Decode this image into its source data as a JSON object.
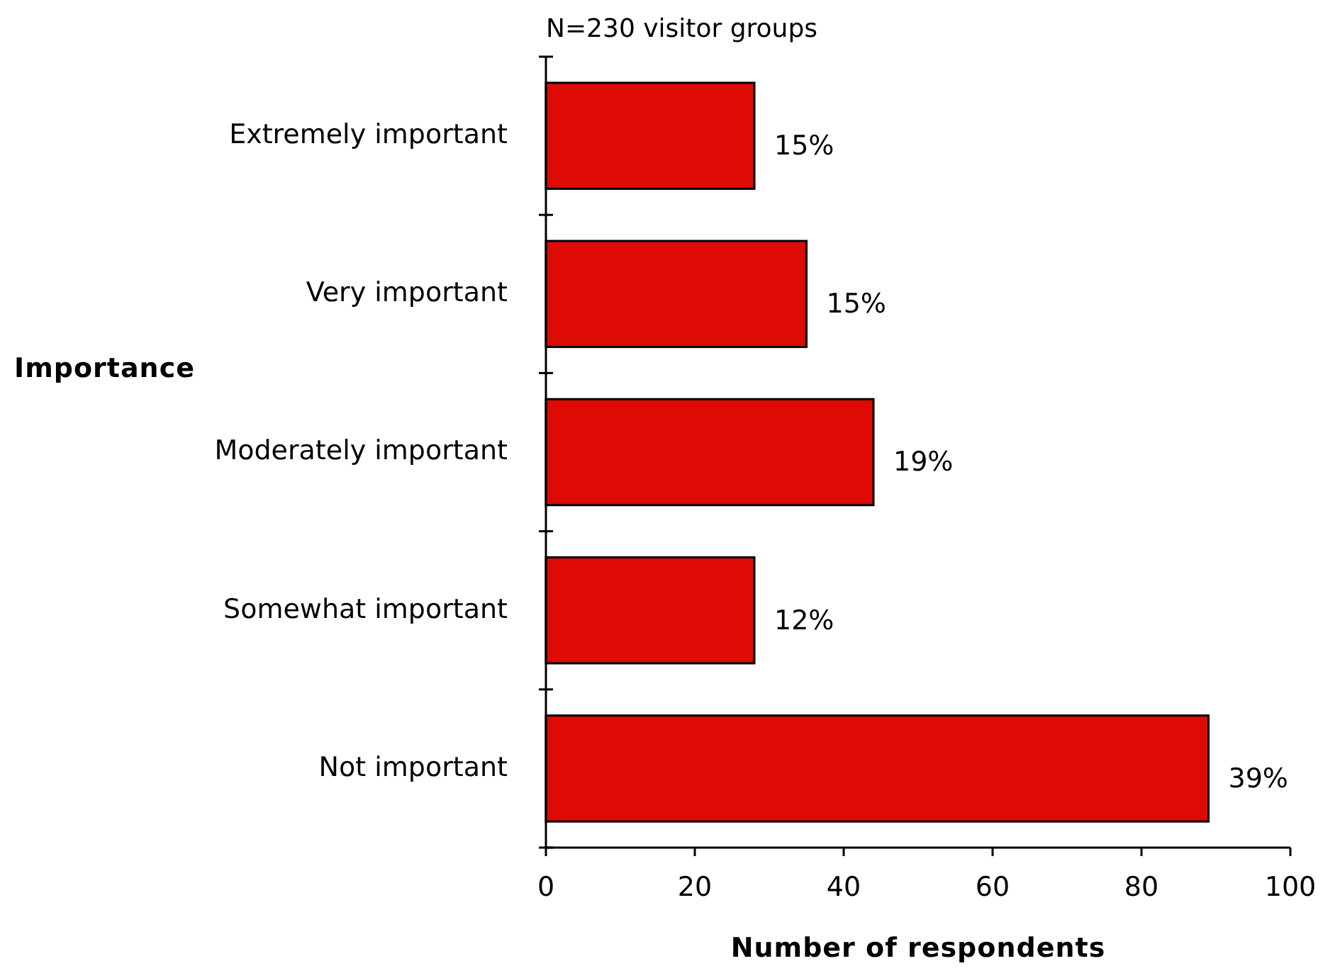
{
  "chart_data": {
    "type": "bar",
    "orientation": "horizontal",
    "title": "N=230 visitor groups",
    "xlabel": "Number of respondents",
    "ylabel": "Importance",
    "categories": [
      "Extremely important",
      "Very important",
      "Moderately important",
      "Somewhat important",
      "Not important"
    ],
    "values": [
      28,
      35,
      44,
      28,
      89
    ],
    "annotations": [
      {
        "text": "15%",
        "x": 28,
        "y": "Extremely important"
      },
      {
        "text": "15%",
        "x": 35,
        "y": "Very important"
      },
      {
        "text": "19%",
        "x": 44,
        "y": "Moderately important"
      },
      {
        "text": "12%",
        "x": 28,
        "y": "Somewhat important"
      },
      {
        "text": "39%",
        "x": 89,
        "y": "Not important"
      }
    ],
    "color": "#dd0a06",
    "xlim": [
      0,
      100
    ],
    "xticks": [
      0,
      20,
      40,
      60,
      80,
      100
    ],
    "grid": false
  }
}
